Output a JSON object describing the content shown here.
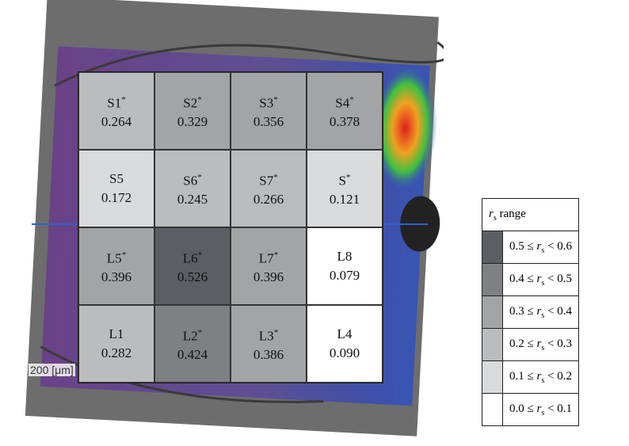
{
  "figure": {
    "scale_bar": "200 [μm]",
    "grid": [
      [
        {
          "label": "S1",
          "star": "*",
          "value": "0.264"
        },
        {
          "label": "S2",
          "star": "*",
          "value": "0.329"
        },
        {
          "label": "S3",
          "star": "*",
          "value": "0.356"
        },
        {
          "label": "S4",
          "star": "*",
          "value": "0.378"
        }
      ],
      [
        {
          "label": "S5",
          "star": "",
          "value": "0.172"
        },
        {
          "label": "S6",
          "star": "*",
          "value": "0.245"
        },
        {
          "label": "S7",
          "star": "*",
          "value": "0.266"
        },
        {
          "label": "S",
          "star": "*",
          "value": "0.121"
        }
      ],
      [
        {
          "label": "L5",
          "star": "*",
          "value": "0.396"
        },
        {
          "label": "L6",
          "star": "*",
          "value": "0.526"
        },
        {
          "label": "L7",
          "star": "*",
          "value": "0.396"
        },
        {
          "label": "L8",
          "star": "",
          "value": "0.079"
        }
      ],
      [
        {
          "label": "L1",
          "star": "",
          "value": "0.282"
        },
        {
          "label": "L2",
          "star": "*",
          "value": "0.424"
        },
        {
          "label": "L3",
          "star": "*",
          "value": "0.386"
        },
        {
          "label": "L4",
          "star": "",
          "value": "0.090"
        }
      ]
    ],
    "legend": {
      "symbol": "r",
      "subscript": "s",
      "header_suffix": "range",
      "le": "≤",
      "lt": "<",
      "rows": [
        {
          "lower": "0.5",
          "upper": "0.6",
          "color": "#5b5e62"
        },
        {
          "lower": "0.4",
          "upper": "0.5",
          "color": "#7e8083"
        },
        {
          "lower": "0.3",
          "upper": "0.4",
          "color": "#a2a4a6"
        },
        {
          "lower": "0.2",
          "upper": "0.3",
          "color": "#babcbe"
        },
        {
          "lower": "0.1",
          "upper": "0.2",
          "color": "#d9dadb"
        },
        {
          "lower": "0.0",
          "upper": "0.1",
          "color": "#ffffff"
        }
      ]
    }
  }
}
